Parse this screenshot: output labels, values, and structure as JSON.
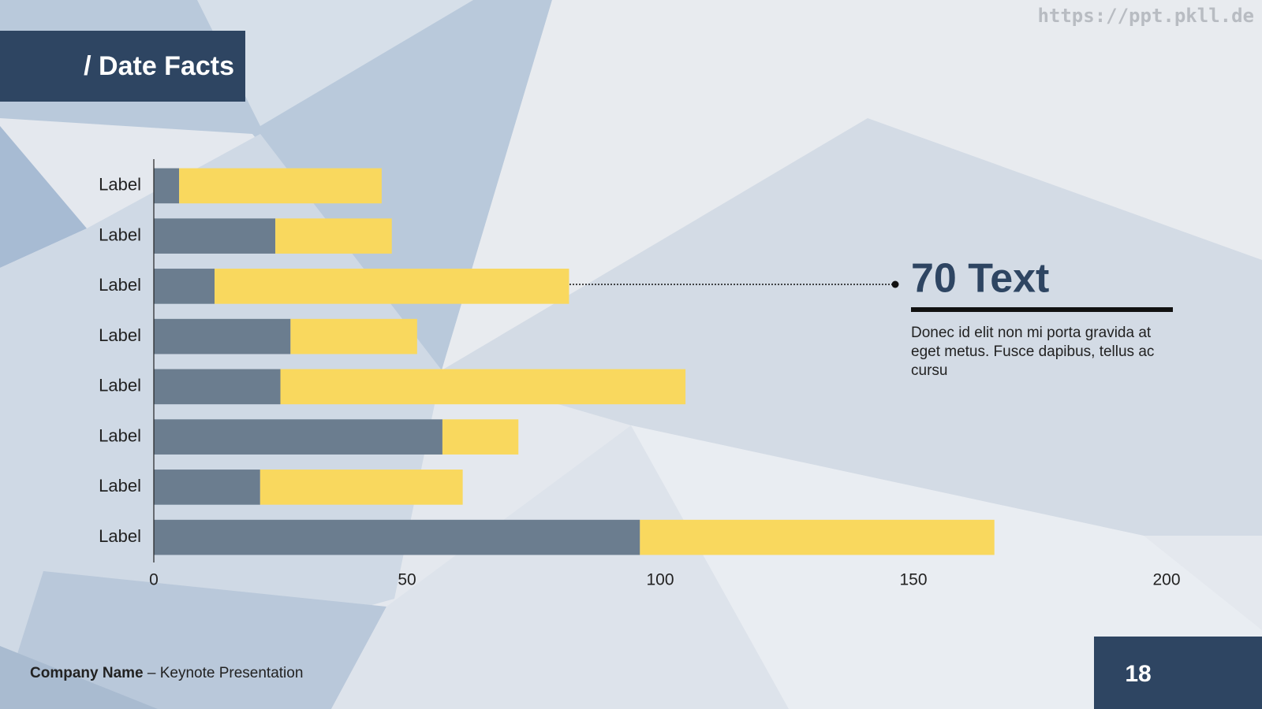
{
  "slide": {
    "title": "/ Date Facts",
    "watermark": "https://ppt.pkll.de",
    "callout_title": "70 Text",
    "callout_body": "Donec id elit non mi porta gravida at eget metus. Fusce dapibus, tellus ac cursu",
    "footer_company": "Company Name",
    "footer_rest": "– Keynote Presentation",
    "page_number": "18"
  },
  "chart_data": {
    "type": "bar",
    "orientation": "horizontal",
    "stacked": true,
    "categories": [
      "Label",
      "Label",
      "Label",
      "Label",
      "Label",
      "Label",
      "Label",
      "Label"
    ],
    "series": [
      {
        "color": "#6b7d8f",
        "values": [
          5,
          24,
          12,
          27,
          25,
          57,
          21,
          96
        ]
      },
      {
        "color": "#f9d85e",
        "values": [
          40,
          23,
          70,
          25,
          80,
          15,
          40,
          70
        ]
      }
    ],
    "xlim": [
      0,
      200
    ],
    "xticks": [
      0,
      50,
      100,
      150,
      200
    ],
    "grid": false
  }
}
